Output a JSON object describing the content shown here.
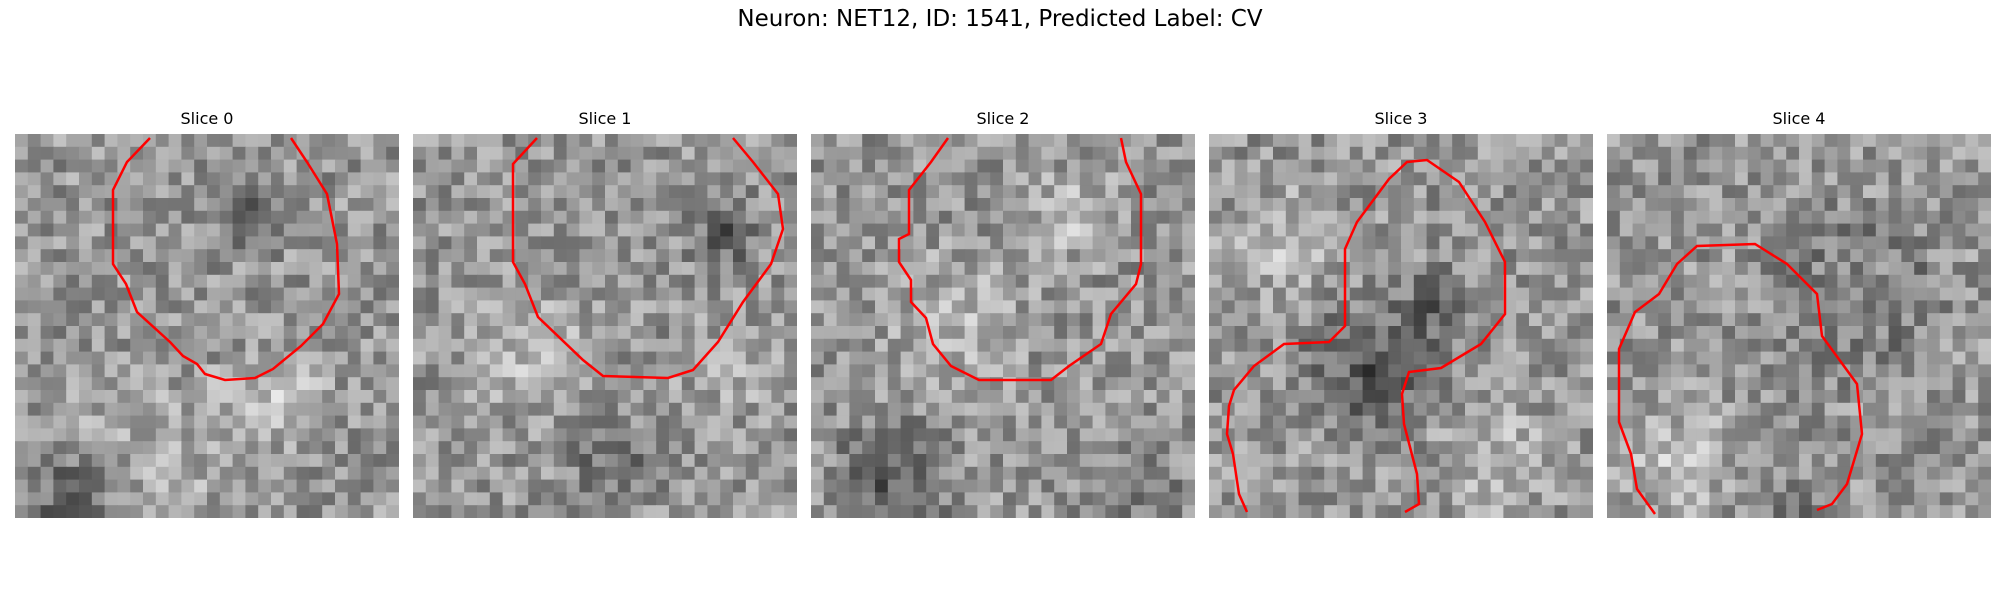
{
  "figure": {
    "suptitle": "Neuron: NET12, ID: 1541, Predicted Label: CV"
  },
  "panels": [
    {
      "title": "Slice 0"
    },
    {
      "title": "Slice 1"
    },
    {
      "title": "Slice 2"
    },
    {
      "title": "Slice 3"
    },
    {
      "title": "Slice 4"
    }
  ],
  "colors": {
    "contour": "#ff0000",
    "background": "#ffffff"
  }
}
